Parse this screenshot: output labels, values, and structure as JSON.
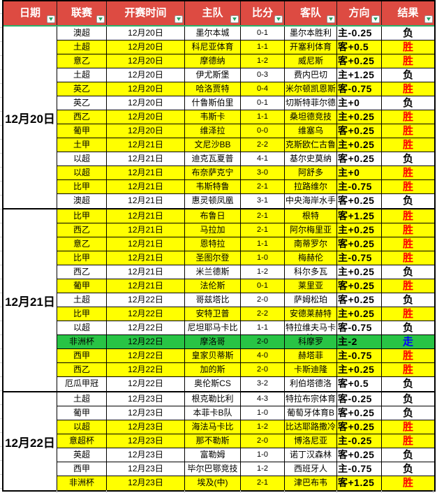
{
  "table": {
    "columns": [
      {
        "key": "date",
        "label": "日期"
      },
      {
        "key": "league",
        "label": "联赛"
      },
      {
        "key": "kickoff",
        "label": "开赛时间"
      },
      {
        "key": "home",
        "label": "主队"
      },
      {
        "key": "score",
        "label": "比分"
      },
      {
        "key": "away",
        "label": "客队"
      },
      {
        "key": "dir",
        "label": "方向"
      },
      {
        "key": "result",
        "label": "结果"
      }
    ]
  },
  "groups": [
    {
      "date": "12月20日",
      "start": 0,
      "count": 13
    },
    {
      "date": "12月21日",
      "start": 13,
      "count": 13
    },
    {
      "date": "12月22日",
      "start": 26,
      "count": 7
    }
  ],
  "rows": [
    {
      "league": "澳超",
      "kickoff": "12月20日",
      "home": "墨尔本城",
      "score": "0-1",
      "away": "墨尔本胜利",
      "dir": "主-0.25",
      "result": "负",
      "bg": "white"
    },
    {
      "league": "土超",
      "kickoff": "12月20日",
      "home": "科尼亚体育",
      "score": "1-1",
      "away": "开塞利体育",
      "dir": "客+0.5",
      "result": "胜",
      "bg": "yellow"
    },
    {
      "league": "意乙",
      "kickoff": "12月20日",
      "home": "摩德纳",
      "score": "1-2",
      "away": "威尼斯",
      "dir": "客+0.25",
      "result": "胜",
      "bg": "yellow"
    },
    {
      "league": "土超",
      "kickoff": "12月20日",
      "home": "伊尤斯堡",
      "score": "0-3",
      "away": "费内巴切",
      "dir": "主+1.25",
      "result": "负",
      "bg": "white"
    },
    {
      "league": "英乙",
      "kickoff": "12月20日",
      "home": "哈洛贾特",
      "score": "0-4",
      "away": "米尔顿凯恩斯",
      "dir": "客-0.75",
      "result": "胜",
      "bg": "yellow"
    },
    {
      "league": "英乙",
      "kickoff": "12月20日",
      "home": "什鲁斯伯里",
      "score": "0-1",
      "away": "切斯特菲尔德",
      "dir": "主+0",
      "result": "负",
      "bg": "white"
    },
    {
      "league": "西乙",
      "kickoff": "12月20日",
      "home": "韦斯卡",
      "score": "1-1",
      "away": "桑坦德竞技",
      "dir": "主+0.25",
      "result": "胜",
      "bg": "yellow"
    },
    {
      "league": "葡甲",
      "kickoff": "12月20日",
      "home": "维泽拉",
      "score": "0-0",
      "away": "维塞乌",
      "dir": "客+0.25",
      "result": "胜",
      "bg": "yellow"
    },
    {
      "league": "土甲",
      "kickoff": "12月21日",
      "home": "文尼沙BB",
      "score": "2-2",
      "away": "克斯欧仁古鲁",
      "dir": "主+0.25",
      "result": "胜",
      "bg": "yellow"
    },
    {
      "league": "以超",
      "kickoff": "12月21日",
      "home": "迪克瓦夏普",
      "score": "4-1",
      "away": "基尔史莫纳",
      "dir": "客+0.25",
      "result": "负",
      "bg": "white"
    },
    {
      "league": "以超",
      "kickoff": "12月21日",
      "home": "布奈萨克宁",
      "score": "3-0",
      "away": "阿舒多",
      "dir": "主+0",
      "result": "胜",
      "bg": "yellow"
    },
    {
      "league": "比甲",
      "kickoff": "12月21日",
      "home": "韦斯特鲁",
      "score": "2-1",
      "away": "拉路维尔",
      "dir": "主-0.75",
      "result": "胜",
      "bg": "yellow"
    },
    {
      "league": "澳超",
      "kickoff": "12月21日",
      "home": "惠灵顿凤凰",
      "score": "3-1",
      "away": "中央海岸水手",
      "dir": "客+0.25",
      "result": "负",
      "bg": "white"
    },
    {
      "league": "比甲",
      "kickoff": "12月21日",
      "home": "布鲁日",
      "score": "2-1",
      "away": "根特",
      "dir": "客+1.25",
      "result": "胜",
      "bg": "yellow"
    },
    {
      "league": "西乙",
      "kickoff": "12月21日",
      "home": "马拉加",
      "score": "2-1",
      "away": "阿尔梅里亚",
      "dir": "主+0.25",
      "result": "胜",
      "bg": "yellow"
    },
    {
      "league": "意乙",
      "kickoff": "12月21日",
      "home": "恩特拉",
      "score": "1-1",
      "away": "南蒂罗尔",
      "dir": "客+0.25",
      "result": "胜",
      "bg": "yellow"
    },
    {
      "league": "比甲",
      "kickoff": "12月21日",
      "home": "圣图尔登",
      "score": "1-0",
      "away": "梅赫伦",
      "dir": "主-0.75",
      "result": "胜",
      "bg": "yellow"
    },
    {
      "league": "西乙",
      "kickoff": "12月21日",
      "home": "米兰德斯",
      "score": "1-2",
      "away": "科尔多瓦",
      "dir": "主+0.25",
      "result": "负",
      "bg": "white"
    },
    {
      "league": "葡甲",
      "kickoff": "12月21日",
      "home": "法伦斯",
      "score": "0-1",
      "away": "莱里亚",
      "dir": "客+0.25",
      "result": "胜",
      "bg": "yellow"
    },
    {
      "league": "土超",
      "kickoff": "12月22日",
      "home": "哥兹塔比",
      "score": "2-0",
      "away": "萨姆松珀",
      "dir": "客+0.25",
      "result": "负",
      "bg": "white"
    },
    {
      "league": "比甲",
      "kickoff": "12月22日",
      "home": "安特卫普",
      "score": "2-2",
      "away": "安德莱赫特",
      "dir": "主+0.25",
      "result": "胜",
      "bg": "yellow"
    },
    {
      "league": "以超",
      "kickoff": "12月22日",
      "home": "尼坦耶马卡比",
      "score": "1-1",
      "away": "特拉维夫马卡比",
      "dir": "客-0.75",
      "result": "负",
      "bg": "white"
    },
    {
      "league": "非洲杯",
      "kickoff": "12月22日",
      "home": "摩洛哥",
      "score": "2-0",
      "away": "科摩罗",
      "dir": "主-2",
      "result": "走",
      "bg": "green"
    },
    {
      "league": "西甲",
      "kickoff": "12月22日",
      "home": "皇家贝蒂斯",
      "score": "4-0",
      "away": "赫塔菲",
      "dir": "主-0.75",
      "result": "胜",
      "bg": "yellow"
    },
    {
      "league": "西乙",
      "kickoff": "12月22日",
      "home": "加的斯",
      "score": "2-0",
      "away": "卡斯迪隆",
      "dir": "主+0.25",
      "result": "胜",
      "bg": "yellow"
    },
    {
      "league": "厄瓜甲冠",
      "kickoff": "12月22日",
      "home": "奥伦斯CS",
      "score": "3-2",
      "away": "利伯塔德洛",
      "dir": "客+0.5",
      "result": "负",
      "bg": "white"
    },
    {
      "league": "土超",
      "kickoff": "12月23日",
      "home": "根克勒比利",
      "score": "4-3",
      "away": "特拉布宗体育",
      "dir": "客-0.25",
      "result": "负",
      "bg": "white"
    },
    {
      "league": "葡甲",
      "kickoff": "12月23日",
      "home": "本菲卡B队",
      "score": "1-0",
      "away": "葡萄牙体育B",
      "dir": "客+0.25",
      "result": "负",
      "bg": "white"
    },
    {
      "league": "以超",
      "kickoff": "12月23日",
      "home": "海法马卡比",
      "score": "1-2",
      "away": "比达耶路撒冷",
      "dir": "客+0.25",
      "result": "胜",
      "bg": "yellow"
    },
    {
      "league": "意超杯",
      "kickoff": "12月23日",
      "home": "那不勒斯",
      "score": "2-0",
      "away": "博洛尼亚",
      "dir": "主-0.25",
      "result": "胜",
      "bg": "yellow"
    },
    {
      "league": "英超",
      "kickoff": "12月23日",
      "home": "富勒姆",
      "score": "1-0",
      "away": "诺丁汉森林",
      "dir": "客+0.25",
      "result": "负",
      "bg": "white"
    },
    {
      "league": "西甲",
      "kickoff": "12月23日",
      "home": "毕尔巴鄂竞技",
      "score": "1-2",
      "away": "西班牙人",
      "dir": "主-0.75",
      "result": "负",
      "bg": "white"
    },
    {
      "league": "非洲杯",
      "kickoff": "12月23日",
      "home": "埃及(中)",
      "score": "2-1",
      "away": "津巴布韦",
      "dir": "客+1.25",
      "result": "胜",
      "bg": "yellow"
    }
  ],
  "colors": {
    "header_bg": "#dd4b42",
    "header_text": "#ffffff",
    "header_underline": "#2bb26b",
    "filter_arrow": "#21a366",
    "row_white": "#ffffff",
    "row_yellow": "#ffff00",
    "row_green": "#28c445",
    "result_win": "#fe0000",
    "result_lose": "#000000",
    "result_go": "#0000ff",
    "grid_border": "#000000"
  },
  "result_color_map": {
    "胜": "result_win",
    "负": "result_lose",
    "走": "result_go"
  }
}
